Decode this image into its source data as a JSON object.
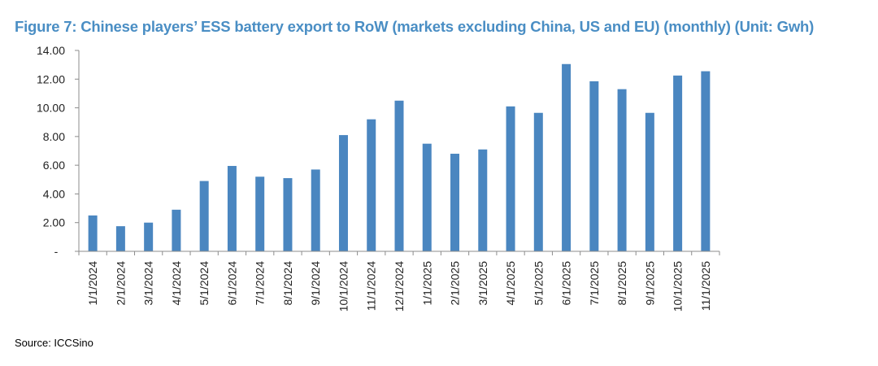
{
  "chart_data": {
    "type": "bar",
    "title": "Figure 7: Chinese players’ ESS battery export to RoW (markets excluding China, US and EU) (monthly) (Unit: Gwh)",
    "xlabel": "",
    "ylabel": "",
    "ylim": [
      0,
      14
    ],
    "yticks": [
      0,
      2,
      4,
      6,
      8,
      10,
      12,
      14
    ],
    "ytick_labels": [
      "-",
      "2.00",
      "4.00",
      "6.00",
      "8.00",
      "10.00",
      "12.00",
      "14.00"
    ],
    "categories": [
      "1/1/2024",
      "2/1/2024",
      "3/1/2024",
      "4/1/2024",
      "5/1/2024",
      "6/1/2024",
      "7/1/2024",
      "8/1/2024",
      "9/1/2024",
      "10/1/2024",
      "11/1/2024",
      "12/1/2024",
      "1/1/2025",
      "2/1/2025",
      "3/1/2025",
      "4/1/2025",
      "5/1/2025",
      "6/1/2025",
      "7/1/2025",
      "8/1/2025",
      "9/1/2025",
      "10/1/2025",
      "11/1/2025"
    ],
    "values": [
      2.5,
      1.75,
      2.0,
      2.9,
      4.9,
      5.95,
      5.2,
      5.1,
      5.7,
      8.1,
      9.2,
      10.5,
      7.5,
      6.8,
      7.1,
      10.1,
      9.65,
      13.05,
      11.85,
      11.3,
      9.65,
      12.25,
      12.55
    ],
    "bar_color": "#4a86c0",
    "grid": false,
    "legend": "none"
  },
  "source": "Source: ICCSino"
}
